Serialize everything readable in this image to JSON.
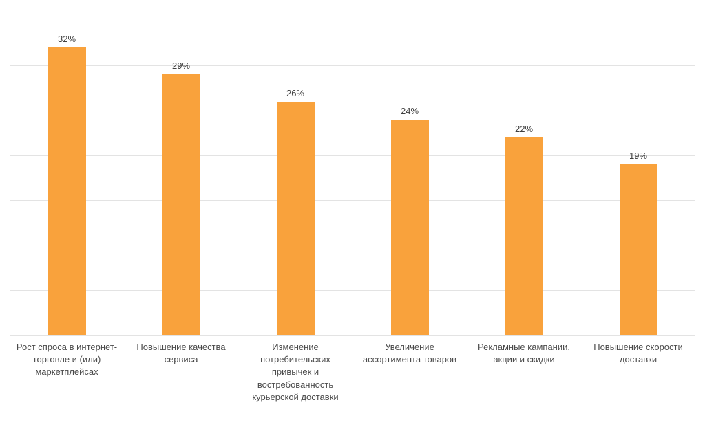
{
  "chart_data": {
    "type": "bar",
    "title": "",
    "categories": [
      "Рост спроса в интернет-торговле и (или) маркетплейсах",
      "Повышение качества сервиса",
      "Изменение потребительских привычек и востребованность курьерской доставки",
      "Увеличение ассортимента товаров",
      "Рекламные кампании, акции и скидки",
      "Повышение скорости доставки"
    ],
    "values": [
      32,
      29,
      26,
      24,
      22,
      19
    ],
    "value_labels": [
      "32%",
      "29%",
      "26%",
      "24%",
      "22%",
      "19%"
    ],
    "xlabel": "",
    "ylabel": "",
    "ylim": [
      0,
      35
    ],
    "grid_step": 5,
    "grid": true,
    "legend": false,
    "colors": {
      "bar": "#f9a23c",
      "value_label": "#404040",
      "category_label": "#4a4a4a",
      "gridline": "#e3e3e3",
      "background": "#ffffff"
    }
  }
}
